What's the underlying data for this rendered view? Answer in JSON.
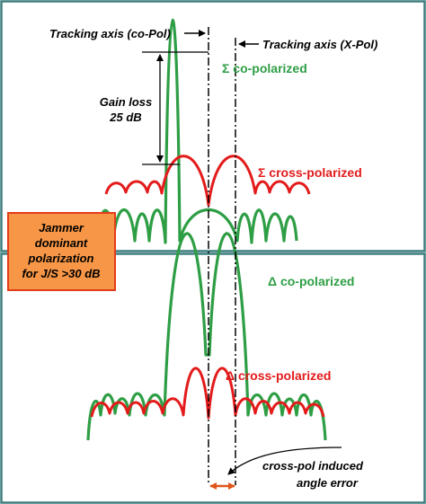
{
  "colors": {
    "panel_border": "#3f7f7f",
    "co_pol": "#2e9e45",
    "cross_pol": "#e31b1b",
    "callout_fill": "#f79646",
    "callout_border": "#e33b1b",
    "axis_line": "#000000",
    "angle_error": "#e0561a"
  },
  "labels": {
    "tracking_co": "Tracking axis (co-Pol)",
    "tracking_x": "Tracking axis (X-Pol)",
    "gain_loss_1": "Gain loss",
    "gain_loss_2": "25 dB",
    "sum_co": "Σ co-polarized",
    "sum_cross": "Σ cross-polarized",
    "delta_co": "Δ co-polarized",
    "delta_cross": "Δ cross-polarized",
    "jammer_1": "Jammer",
    "jammer_2": "dominant",
    "jammer_3": "polarization",
    "jammer_4": "for J/S >30 dB",
    "crosspol_1": "cross-pol  induced",
    "crosspol_2": "angle error"
  },
  "icons": {
    "arrow_right": "arrow-right-icon",
    "arrow_left": "arrow-left-icon",
    "double_arrow": "double-arrow-icon"
  }
}
